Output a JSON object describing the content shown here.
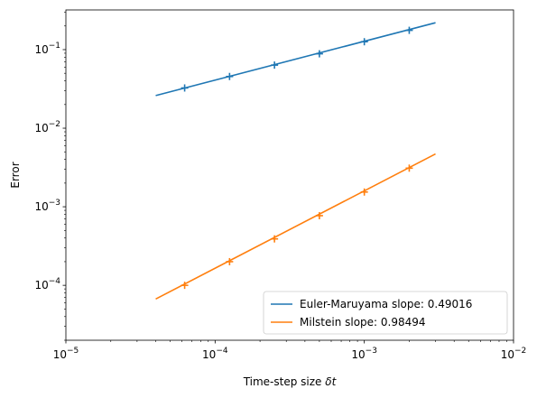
{
  "chart_data": {
    "type": "line",
    "title": "",
    "xlabel": "Time-step size",
    "xlabel_symbol": "δt",
    "ylabel": "Error",
    "xscale": "log",
    "yscale": "log",
    "xlim": [
      1e-05,
      0.01
    ],
    "ylim": [
      2e-05,
      0.32
    ],
    "grid": false,
    "legend_position": "lower right",
    "x_ticks": [
      {
        "base": "10",
        "exp": "−5",
        "value": 1e-05
      },
      {
        "base": "10",
        "exp": "−4",
        "value": 0.0001
      },
      {
        "base": "10",
        "exp": "−3",
        "value": 0.001
      },
      {
        "base": "10",
        "exp": "−2",
        "value": 0.01
      }
    ],
    "y_ticks": [
      {
        "base": "10",
        "exp": "−4",
        "value": 0.0001
      },
      {
        "base": "10",
        "exp": "−3",
        "value": 0.001
      },
      {
        "base": "10",
        "exp": "−2",
        "value": 0.01
      },
      {
        "base": "10",
        "exp": "−1",
        "value": 0.1
      }
    ],
    "series": [
      {
        "name": "Euler-Maruyama slope: 0.49016",
        "color": "#1f77b4",
        "fit_line": {
          "x": [
            4e-05,
            0.003
          ],
          "y": [
            0.026,
            0.22
          ]
        },
        "points": {
          "x": [
            6.25e-05,
            0.000125,
            0.00025,
            0.0005,
            0.001,
            0.002
          ],
          "y": [
            0.0325,
            0.0455,
            0.0635,
            0.0885,
            0.126,
            0.176
          ]
        }
      },
      {
        "name": "Milstein slope: 0.98494",
        "color": "#ff7f0e",
        "fit_line": {
          "x": [
            4e-05,
            0.003
          ],
          "y": [
            6.7e-05,
            0.0047
          ]
        },
        "points": {
          "x": [
            6.25e-05,
            0.000125,
            0.00025,
            0.0005,
            0.001,
            0.002
          ],
          "y": [
            0.0001,
            0.0002,
            0.00039,
            0.00077,
            0.00154,
            0.0031
          ]
        }
      }
    ]
  }
}
